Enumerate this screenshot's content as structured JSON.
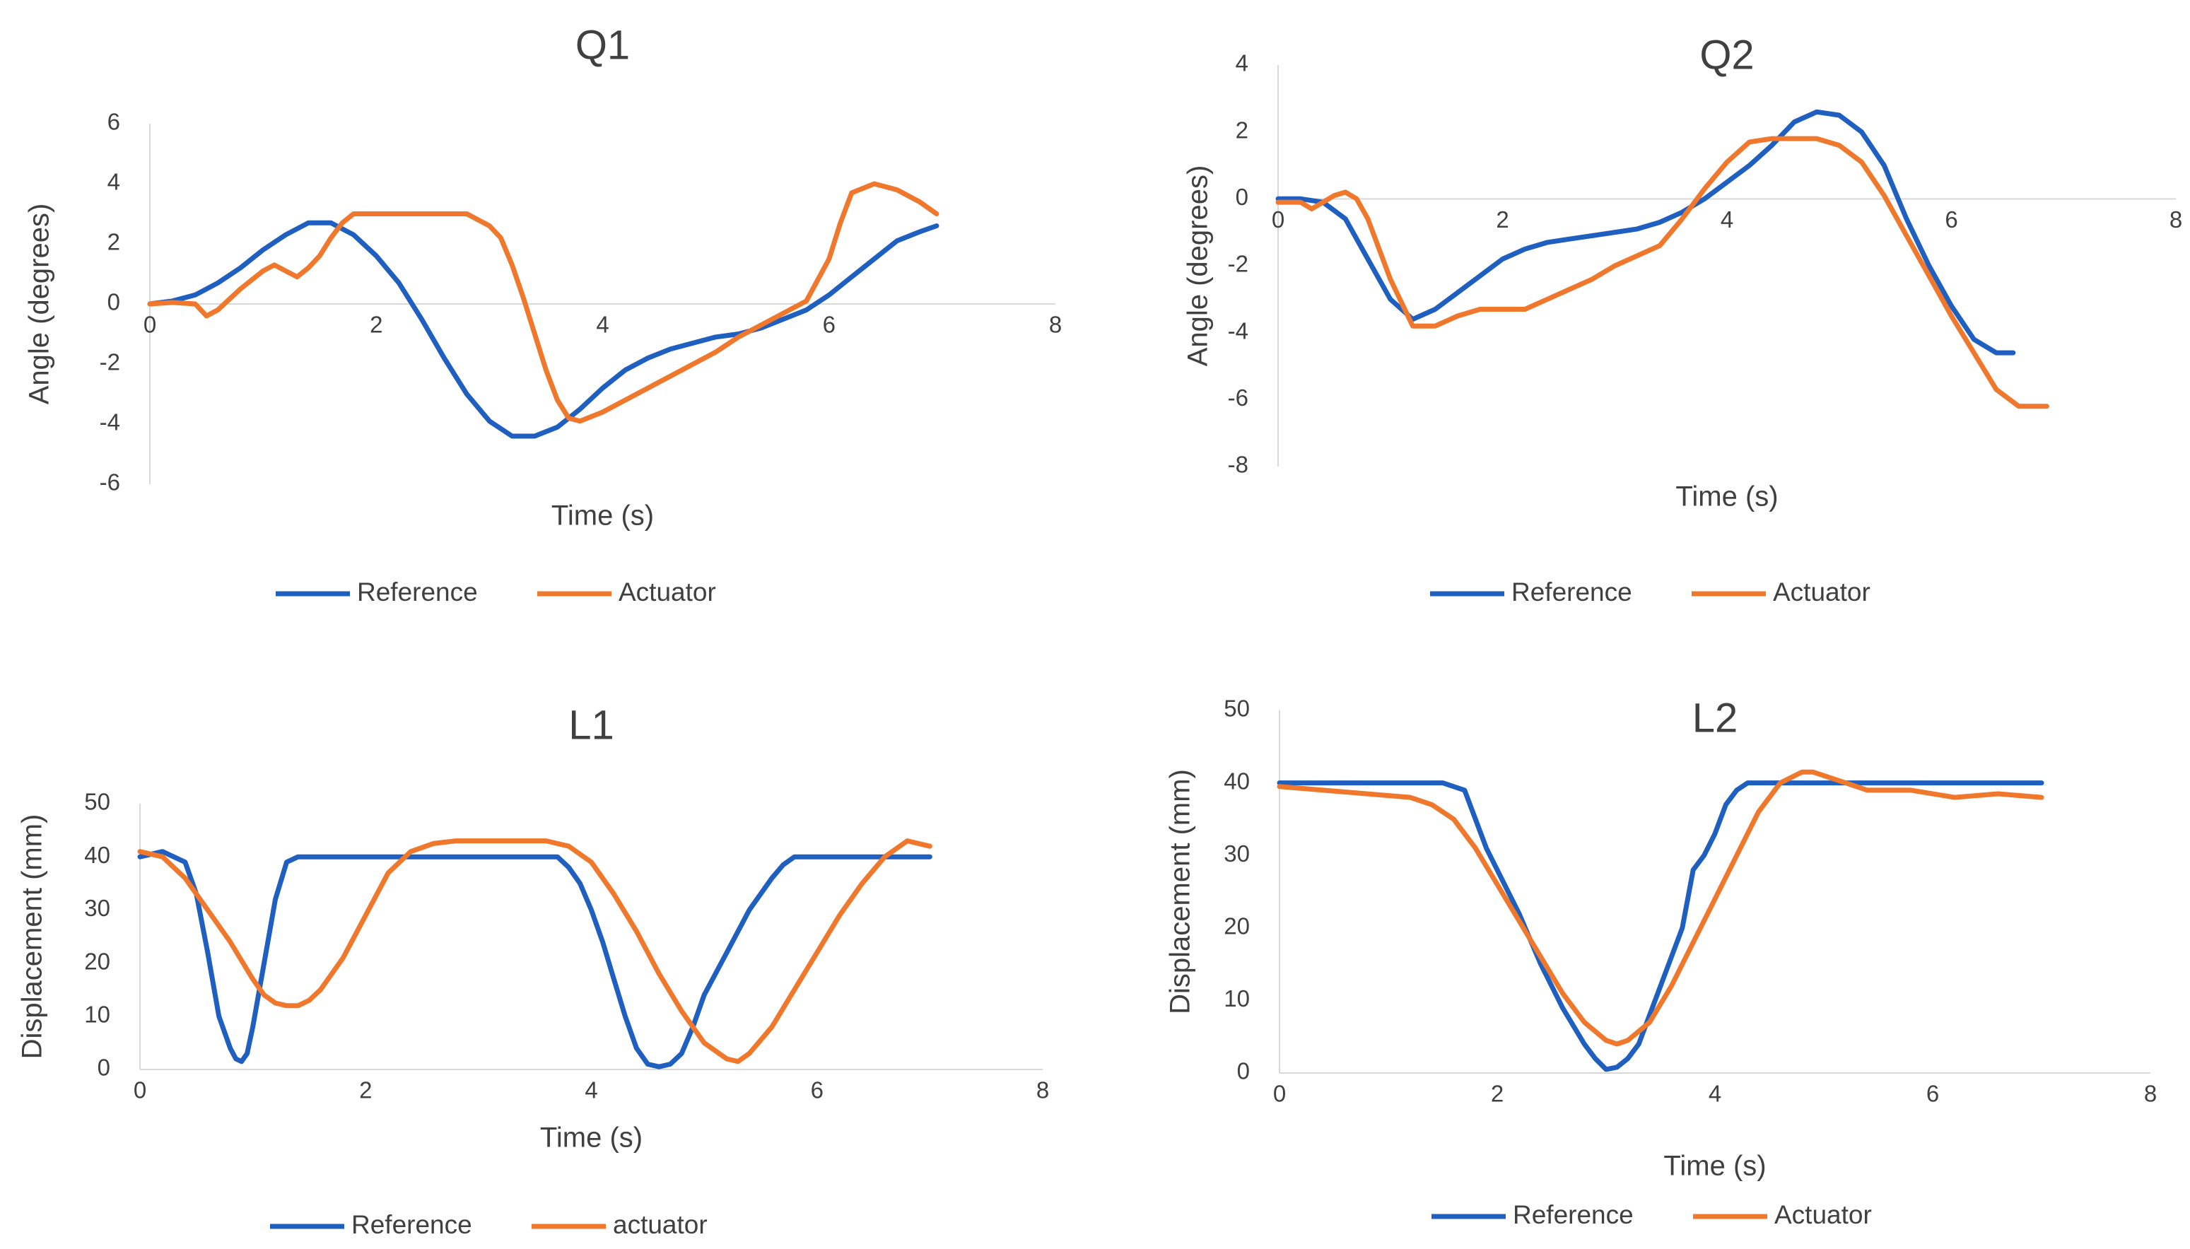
{
  "chart_data": [
    {
      "id": "Q1",
      "type": "line",
      "title": "Q1",
      "xlabel": "Time (s)",
      "ylabel": "Angle (degrees)",
      "xlim": [
        0,
        8
      ],
      "ylim": [
        -6,
        6
      ],
      "xticks": [
        0,
        2,
        4,
        6,
        8
      ],
      "yticks": [
        -6,
        -4,
        -2,
        0,
        2,
        4,
        6
      ],
      "grid": false,
      "legend": "bottom",
      "colors": [
        "#1F5FBF",
        "#F0782D"
      ],
      "series": [
        {
          "name": "Reference",
          "x": [
            0,
            0.2,
            0.4,
            0.6,
            0.8,
            1.0,
            1.2,
            1.4,
            1.6,
            1.8,
            2.0,
            2.2,
            2.4,
            2.6,
            2.8,
            3.0,
            3.2,
            3.4,
            3.6,
            3.8,
            4.0,
            4.2,
            4.4,
            4.6,
            4.8,
            5.0,
            5.2,
            5.4,
            5.6,
            5.8,
            6.0,
            6.2,
            6.4,
            6.6,
            6.8,
            6.95
          ],
          "y": [
            0,
            0.1,
            0.3,
            0.7,
            1.2,
            1.8,
            2.3,
            2.7,
            2.7,
            2.3,
            1.6,
            0.7,
            -0.5,
            -1.8,
            -3.0,
            -3.9,
            -4.4,
            -4.4,
            -4.1,
            -3.5,
            -2.8,
            -2.2,
            -1.8,
            -1.5,
            -1.3,
            -1.1,
            -1.0,
            -0.8,
            -0.5,
            -0.2,
            0.3,
            0.9,
            1.5,
            2.1,
            2.4,
            2.6
          ]
        },
        {
          "name": "Actuator",
          "x": [
            0,
            0.2,
            0.4,
            0.45,
            0.5,
            0.6,
            0.8,
            1.0,
            1.1,
            1.2,
            1.3,
            1.4,
            1.5,
            1.6,
            1.7,
            1.8,
            2.0,
            2.4,
            2.8,
            3.0,
            3.1,
            3.2,
            3.3,
            3.4,
            3.5,
            3.6,
            3.7,
            3.8,
            4.0,
            4.2,
            4.4,
            4.6,
            4.8,
            5.0,
            5.2,
            5.4,
            5.6,
            5.8,
            6.0,
            6.1,
            6.2,
            6.4,
            6.6,
            6.8,
            6.95
          ],
          "y": [
            0,
            0.05,
            0.0,
            -0.2,
            -0.4,
            -0.2,
            0.5,
            1.1,
            1.3,
            1.1,
            0.9,
            1.2,
            1.6,
            2.2,
            2.7,
            3.0,
            3.0,
            3.0,
            3.0,
            2.6,
            2.2,
            1.3,
            0.2,
            -1.0,
            -2.2,
            -3.2,
            -3.8,
            -3.9,
            -3.6,
            -3.2,
            -2.8,
            -2.4,
            -2.0,
            -1.6,
            -1.1,
            -0.7,
            -0.3,
            0.1,
            1.5,
            2.7,
            3.7,
            4.0,
            3.8,
            3.4,
            3.0
          ]
        }
      ]
    },
    {
      "id": "Q2",
      "type": "line",
      "title": "Q2",
      "xlabel": "Time (s)",
      "ylabel": "Angle (degrees)",
      "xlim": [
        0,
        8
      ],
      "ylim": [
        -8,
        4
      ],
      "xticks": [
        0,
        2,
        4,
        6,
        8
      ],
      "yticks": [
        -8,
        -6,
        -4,
        -2,
        0,
        2,
        4
      ],
      "grid": false,
      "legend": "bottom",
      "colors": [
        "#1F5FBF",
        "#F0782D"
      ],
      "series": [
        {
          "name": "Reference",
          "x": [
            0,
            0.2,
            0.4,
            0.6,
            0.8,
            1.0,
            1.2,
            1.4,
            1.6,
            1.8,
            2.0,
            2.2,
            2.4,
            2.6,
            2.8,
            3.0,
            3.2,
            3.4,
            3.6,
            3.8,
            4.0,
            4.2,
            4.4,
            4.6,
            4.8,
            5.0,
            5.2,
            5.4,
            5.6,
            5.8,
            6.0,
            6.2,
            6.4,
            6.55
          ],
          "y": [
            0,
            0,
            -0.1,
            -0.6,
            -1.8,
            -3.0,
            -3.6,
            -3.3,
            -2.8,
            -2.3,
            -1.8,
            -1.5,
            -1.3,
            -1.2,
            -1.1,
            -1.0,
            -0.9,
            -0.7,
            -0.4,
            0.0,
            0.5,
            1.0,
            1.6,
            2.3,
            2.6,
            2.5,
            2.0,
            1.0,
            -0.6,
            -2.0,
            -3.2,
            -4.2,
            -4.6,
            -4.6
          ]
        },
        {
          "name": "Actuator",
          "x": [
            0,
            0.2,
            0.3,
            0.4,
            0.5,
            0.6,
            0.7,
            0.8,
            1.0,
            1.2,
            1.4,
            1.6,
            1.8,
            2.0,
            2.2,
            2.4,
            2.6,
            2.8,
            3.0,
            3.2,
            3.4,
            3.6,
            3.8,
            4.0,
            4.2,
            4.4,
            4.6,
            4.8,
            5.0,
            5.2,
            5.4,
            5.6,
            5.8,
            6.0,
            6.2,
            6.4,
            6.6,
            6.85
          ],
          "y": [
            -0.1,
            -0.1,
            -0.3,
            -0.1,
            0.1,
            0.2,
            0.0,
            -0.6,
            -2.4,
            -3.8,
            -3.8,
            -3.5,
            -3.3,
            -3.3,
            -3.3,
            -3.0,
            -2.7,
            -2.4,
            -2.0,
            -1.7,
            -1.4,
            -0.6,
            0.3,
            1.1,
            1.7,
            1.8,
            1.8,
            1.8,
            1.6,
            1.1,
            0.1,
            -1.1,
            -2.3,
            -3.5,
            -4.6,
            -5.7,
            -6.2,
            -6.2
          ]
        }
      ]
    },
    {
      "id": "L1",
      "type": "line",
      "title": "L1",
      "xlabel": "Time (s)",
      "ylabel": "Displacement (mm)",
      "xlim": [
        0,
        8
      ],
      "ylim": [
        0,
        50
      ],
      "xticks": [
        0,
        2,
        4,
        6,
        8
      ],
      "yticks": [
        0,
        10,
        20,
        30,
        40,
        50
      ],
      "grid": false,
      "legend": "bottom",
      "colors": [
        "#1F5FBF",
        "#F0782D"
      ],
      "series": [
        {
          "name": "Reference",
          "x": [
            0,
            0.2,
            0.4,
            0.5,
            0.6,
            0.7,
            0.8,
            0.85,
            0.9,
            0.95,
            1.0,
            1.1,
            1.2,
            1.3,
            1.4,
            1.5,
            2.0,
            3.0,
            3.7,
            3.8,
            3.9,
            4.0,
            4.1,
            4.2,
            4.3,
            4.4,
            4.5,
            4.6,
            4.7,
            4.8,
            4.9,
            5.0,
            5.2,
            5.4,
            5.6,
            5.7,
            5.8,
            5.9,
            6.0,
            7.0
          ],
          "y": [
            40,
            41,
            39,
            33,
            22,
            10,
            4,
            2,
            1.5,
            3,
            8,
            20,
            32,
            39,
            40,
            40,
            40,
            40,
            40,
            38,
            35,
            30,
            24,
            17,
            10,
            4,
            1,
            0.5,
            1,
            3,
            8,
            14,
            22,
            30,
            36,
            38.5,
            40,
            40,
            40,
            40
          ]
        },
        {
          "name": "actuator",
          "x": [
            0,
            0.2,
            0.4,
            0.6,
            0.8,
            1.0,
            1.1,
            1.2,
            1.3,
            1.4,
            1.5,
            1.6,
            1.8,
            2.0,
            2.2,
            2.4,
            2.6,
            2.8,
            3.0,
            3.2,
            3.4,
            3.6,
            3.8,
            4.0,
            4.2,
            4.4,
            4.6,
            4.8,
            5.0,
            5.2,
            5.3,
            5.4,
            5.6,
            5.8,
            6.0,
            6.2,
            6.4,
            6.6,
            6.8,
            7.0
          ],
          "y": [
            41,
            40,
            36,
            30,
            24,
            17,
            14,
            12.5,
            12,
            12,
            13,
            15,
            21,
            29,
            37,
            41,
            42.5,
            43,
            43,
            43,
            43,
            43,
            42,
            39,
            33,
            26,
            18,
            11,
            5,
            2,
            1.5,
            3,
            8,
            15,
            22,
            29,
            35,
            40,
            43,
            42
          ]
        }
      ]
    },
    {
      "id": "L2",
      "type": "line",
      "title": "L2",
      "xlabel": "Time (s)",
      "ylabel": "Displacement (mm)",
      "xlim": [
        0,
        8
      ],
      "ylim": [
        0,
        50
      ],
      "xticks": [
        0,
        2,
        4,
        6,
        8
      ],
      "yticks": [
        0,
        10,
        20,
        30,
        40,
        50
      ],
      "grid": false,
      "legend": "bottom",
      "colors": [
        "#1F5FBF",
        "#F0782D"
      ],
      "series": [
        {
          "name": "Reference",
          "x": [
            0,
            0.5,
            1.0,
            1.5,
            1.7,
            1.8,
            1.9,
            2.0,
            2.2,
            2.4,
            2.6,
            2.8,
            2.9,
            3.0,
            3.1,
            3.2,
            3.3,
            3.4,
            3.5,
            3.6,
            3.7,
            3.8,
            3.9,
            4.0,
            4.1,
            4.2,
            4.3,
            4.4,
            4.6,
            5.0,
            6.0,
            7.0
          ],
          "y": [
            40,
            40,
            40,
            40,
            39,
            35,
            31,
            28,
            22,
            15,
            9,
            4,
            2,
            0.5,
            0.8,
            2,
            4,
            8,
            12,
            16,
            20,
            28,
            30,
            33,
            37,
            39,
            40,
            40,
            40,
            40,
            40,
            40
          ]
        },
        {
          "name": "Actuator",
          "x": [
            0,
            0.4,
            0.8,
            1.2,
            1.4,
            1.6,
            1.8,
            2.0,
            2.2,
            2.4,
            2.6,
            2.8,
            3.0,
            3.1,
            3.2,
            3.4,
            3.6,
            3.8,
            4.0,
            4.2,
            4.4,
            4.6,
            4.8,
            4.9,
            5.0,
            5.2,
            5.4,
            5.8,
            6.2,
            6.6,
            7.0
          ],
          "y": [
            39.5,
            39,
            38.5,
            38,
            37,
            35,
            31,
            26,
            21,
            16,
            11,
            7,
            4.5,
            4,
            4.5,
            7,
            12,
            18,
            24,
            30,
            36,
            40,
            41.5,
            41.5,
            41,
            40,
            39,
            39,
            38,
            38.5,
            38
          ]
        }
      ]
    }
  ]
}
